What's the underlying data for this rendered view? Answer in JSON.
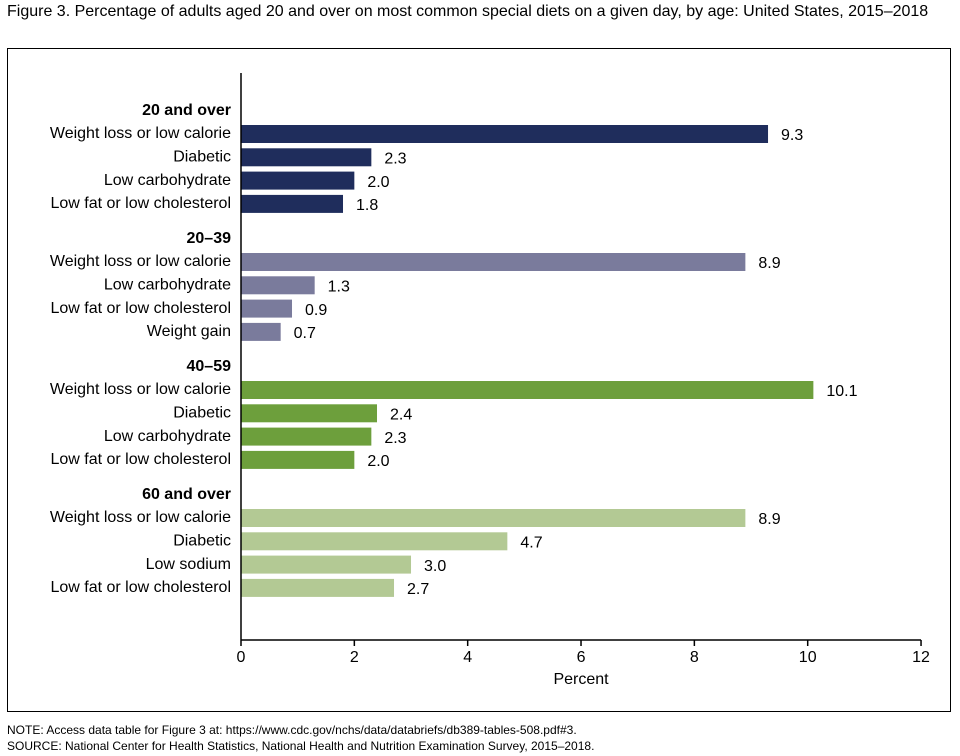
{
  "figure": {
    "title": "Figure 3. Percentage of adults aged 20 and over on most common special diets on a given day, by age: United States, 2015–2018",
    "note": "NOTE: Access data table for Figure 3 at: https://www.cdc.gov/nchs/data/databriefs/db389-tables-508.pdf#3.",
    "source": "SOURCE: National Center for Health Statistics, National Health and Nutrition Examination Survey, 2015–2018."
  },
  "chart_data": {
    "type": "bar",
    "orientation": "horizontal",
    "xlabel": "Percent",
    "xlim": [
      0,
      12
    ],
    "xticks": [
      0,
      2,
      4,
      6,
      8,
      10,
      12
    ],
    "grid": false,
    "groups": [
      {
        "name": "20 and over",
        "color": "#1f2d5c",
        "categories": [
          "Weight loss or low calorie",
          "Diabetic",
          "Low carbohydrate",
          "Low fat or low cholesterol"
        ],
        "values": [
          9.3,
          2.3,
          2.0,
          1.8
        ],
        "labels": [
          "9.3",
          "2.3",
          "2.0",
          "1.8"
        ]
      },
      {
        "name": "20–39",
        "color": "#7a7b9c",
        "categories": [
          "Weight loss or low calorie",
          "Low carbohydrate",
          "Low fat or low cholesterol",
          "Weight gain"
        ],
        "values": [
          8.9,
          1.3,
          0.9,
          0.7
        ],
        "labels": [
          "8.9",
          "1.3",
          "0.9",
          "0.7"
        ]
      },
      {
        "name": "40–59",
        "color": "#6d9f3c",
        "categories": [
          "Weight loss or low calorie",
          "Diabetic",
          "Low carbohydrate",
          "Low fat or low cholesterol"
        ],
        "values": [
          10.1,
          2.4,
          2.3,
          2.0
        ],
        "labels": [
          "10.1",
          "2.4",
          "2.3",
          "2.0"
        ]
      },
      {
        "name": "60 and over",
        "color": "#b3c994",
        "categories": [
          "Weight loss or low calorie",
          "Diabetic",
          "Low sodium",
          "Low fat or low cholesterol"
        ],
        "values": [
          8.9,
          4.7,
          3.0,
          2.7
        ],
        "labels": [
          "8.9",
          "4.7",
          "3.0",
          "2.7"
        ]
      }
    ]
  }
}
